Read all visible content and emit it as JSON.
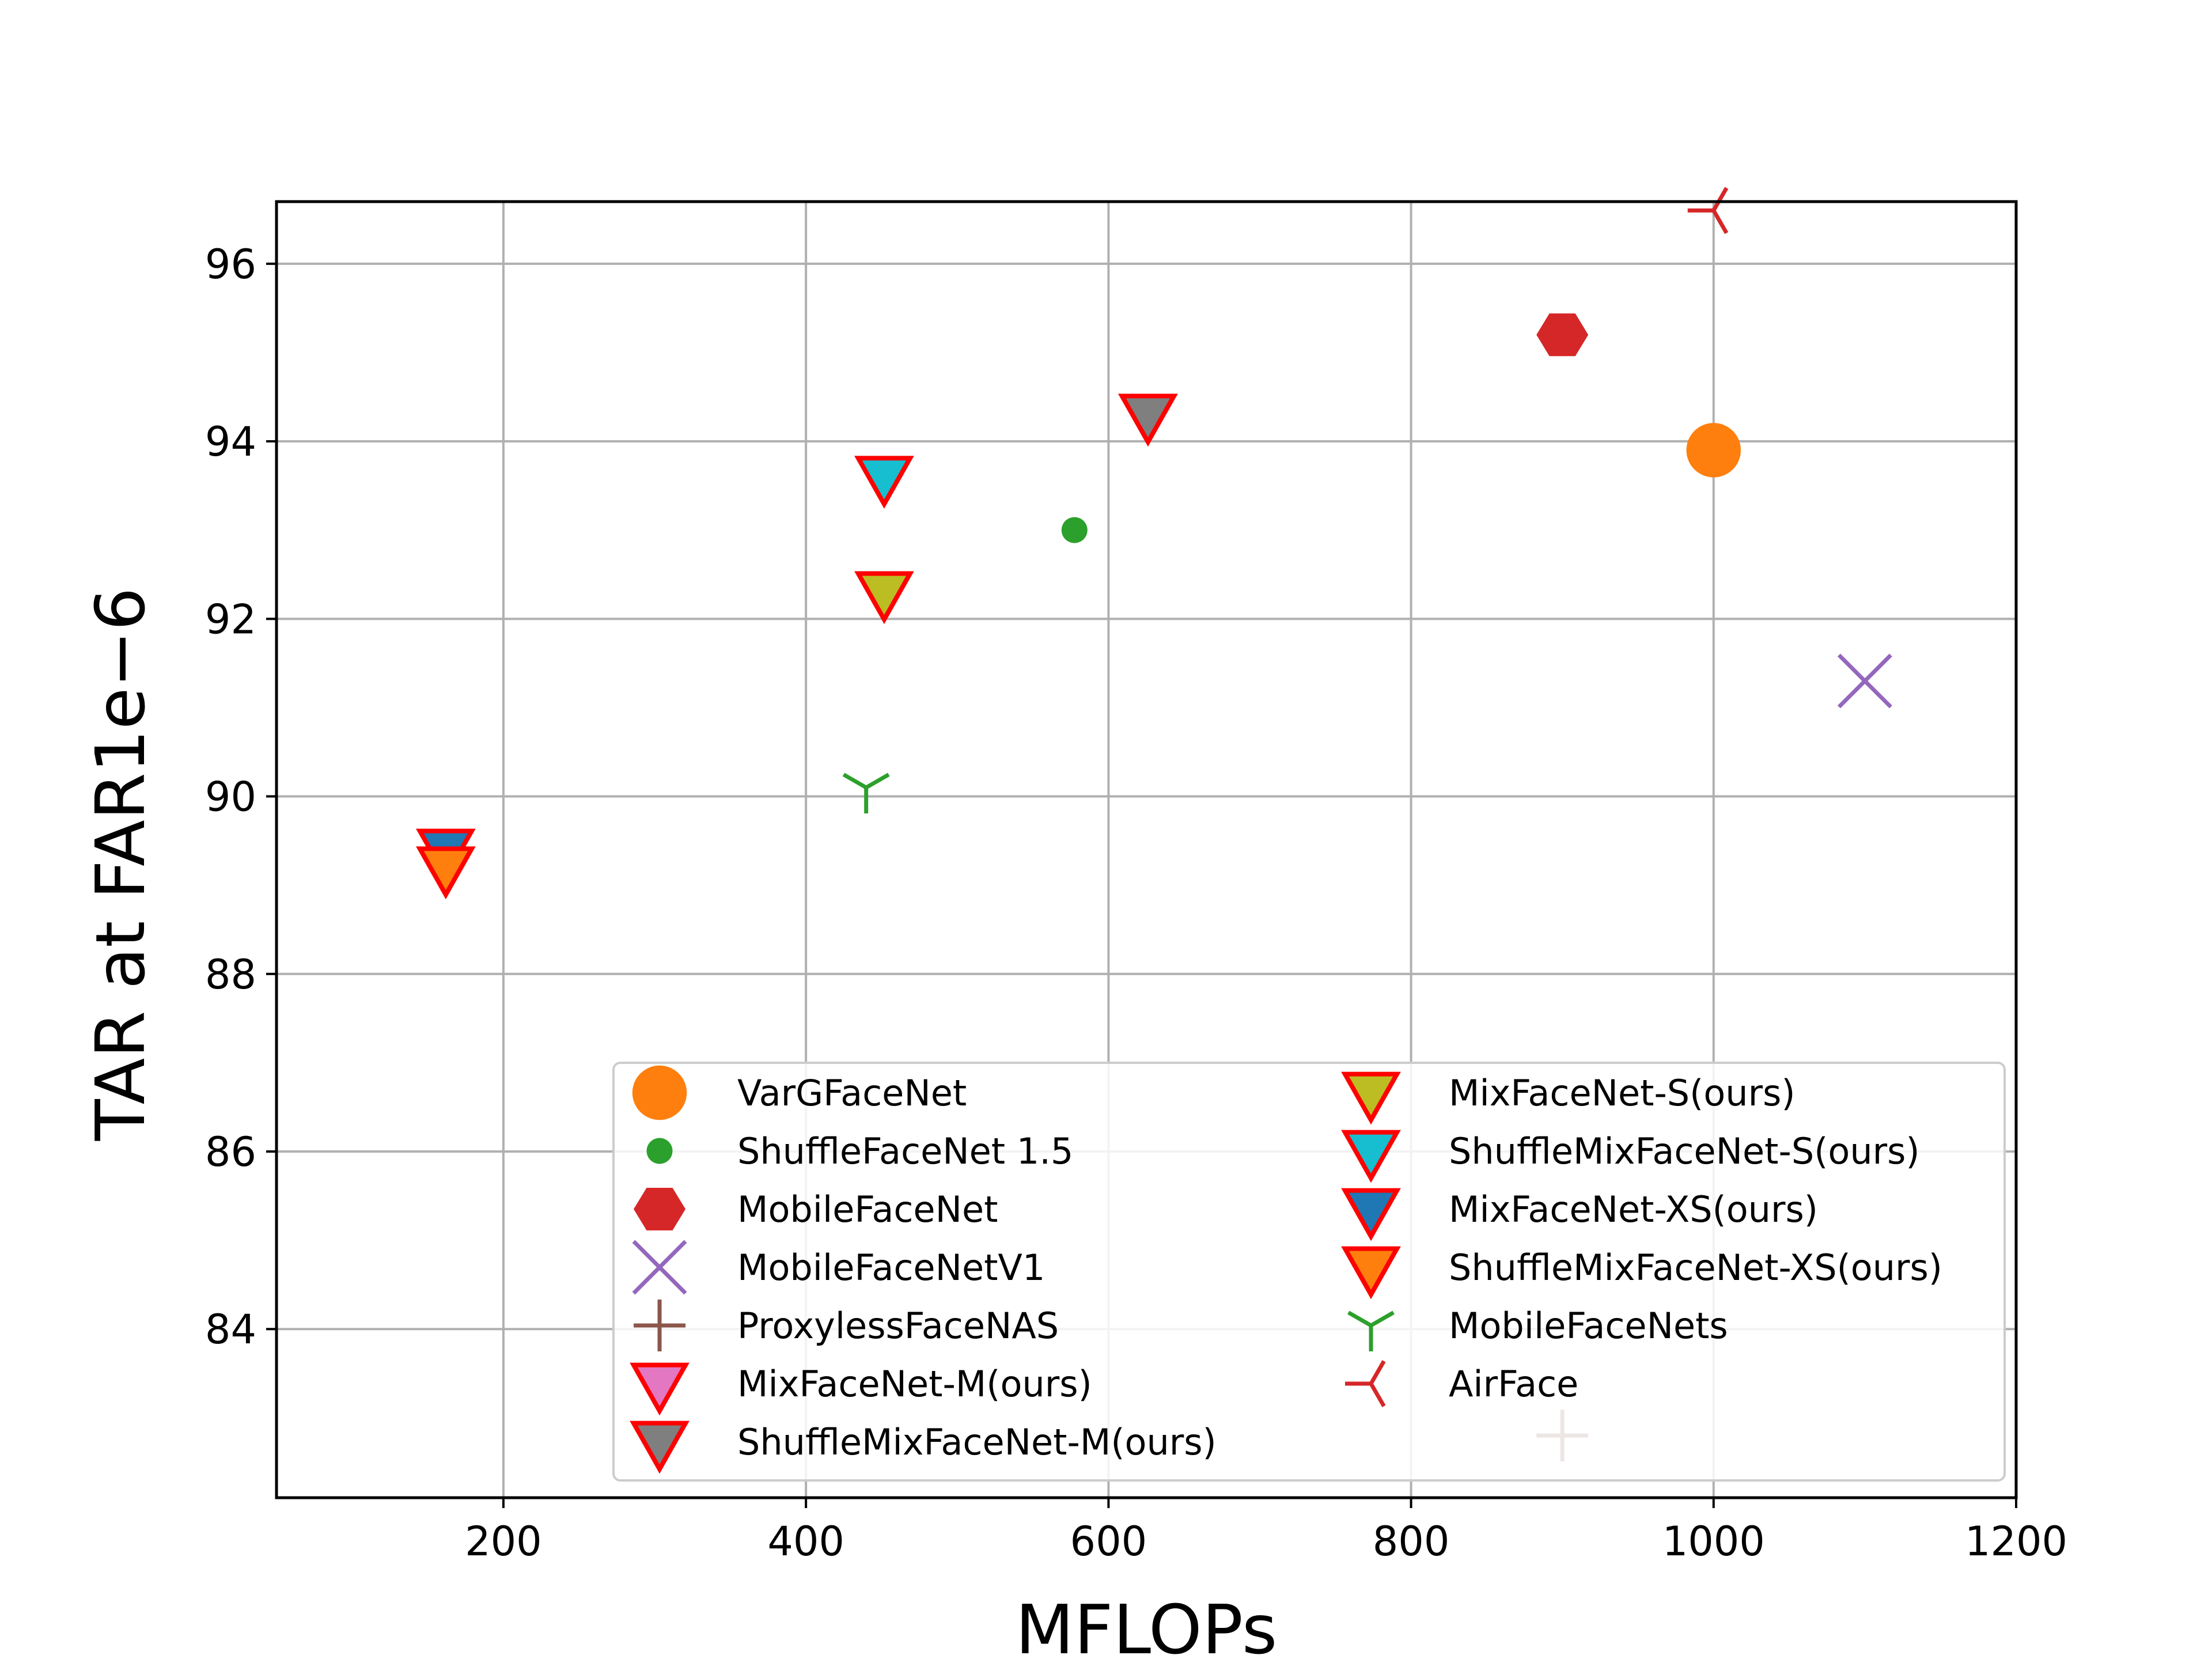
{
  "chart_data": {
    "type": "scatter",
    "title": "",
    "xlabel": "MFLOPs",
    "ylabel": "TAR at FAR1e−6",
    "xlim": [
      50,
      1200
    ],
    "ylim": [
      82.1,
      96.7
    ],
    "xticks": [
      "200",
      "400",
      "600",
      "800",
      "1000",
      "1200"
    ],
    "xtick_values": [
      200,
      400,
      600,
      800,
      1000,
      1200
    ],
    "yticks": [
      "84",
      "86",
      "88",
      "90",
      "92",
      "94",
      "96"
    ],
    "ytick_values": [
      84,
      86,
      88,
      90,
      92,
      94,
      96
    ],
    "grid": true,
    "legend_position": "lower-right",
    "legend_columns": 2,
    "series": [
      {
        "name": "VarGFaceNet",
        "x": 1000,
        "y": 93.9,
        "marker": "circle-large",
        "color": "#ff7f0e",
        "edge": ""
      },
      {
        "name": "ShuffleFaceNet 1.5",
        "x": 577.5,
        "y": 93.0,
        "marker": "circle-small",
        "color": "#2ca02c",
        "edge": ""
      },
      {
        "name": "MobileFaceNet",
        "x": 900,
        "y": 95.2,
        "marker": "hexagon",
        "color": "#d62728",
        "edge": ""
      },
      {
        "name": "MobileFaceNetV1",
        "x": 1100,
        "y": 91.3,
        "marker": "x",
        "color": "#9467bd",
        "edge": ""
      },
      {
        "name": "ProxylessFaceNAS",
        "x": 900,
        "y": 82.8,
        "marker": "plus",
        "color": "#8c564b",
        "edge": ""
      },
      {
        "name": "MixFaceNet-M(ours)",
        "x": 626.1,
        "y": 94.3,
        "marker": "triangle-down",
        "color": "#e377c2",
        "edge": "#ff0000"
      },
      {
        "name": "ShuffleMixFaceNet-M(ours)",
        "x": 626.1,
        "y": 94.3,
        "marker": "triangle-down",
        "color": "#7f7f7f",
        "edge": "#ff0000"
      },
      {
        "name": "MixFaceNet-S(ours)",
        "x": 451.7,
        "y": 92.3,
        "marker": "triangle-down",
        "color": "#bcbd22",
        "edge": "#ff0000"
      },
      {
        "name": "ShuffleMixFaceNet-S(ours)",
        "x": 451.7,
        "y": 93.6,
        "marker": "triangle-down",
        "color": "#17becf",
        "edge": "#ff0000"
      },
      {
        "name": "MixFaceNet-XS(ours)",
        "x": 161.9,
        "y": 89.4,
        "marker": "triangle-down",
        "color": "#1f77b4",
        "edge": "#ff0000"
      },
      {
        "name": "ShuffleMixFaceNet-XS(ours)",
        "x": 161.9,
        "y": 89.2,
        "marker": "triangle-down",
        "color": "#ff7f0e",
        "edge": "#ff0000"
      },
      {
        "name": "MobileFaceNets",
        "x": 439.8,
        "y": 90.1,
        "marker": "tri-down",
        "color": "#2ca02c",
        "edge": ""
      },
      {
        "name": "AirFace",
        "x": 1000,
        "y": 96.6,
        "marker": "tri-left",
        "color": "#d62728",
        "edge": ""
      }
    ]
  }
}
